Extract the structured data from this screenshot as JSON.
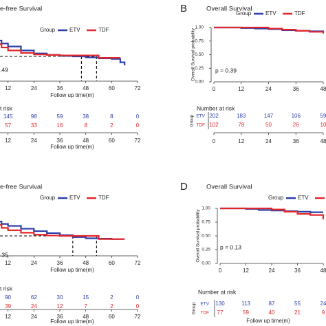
{
  "chart_data": [
    {
      "type": "survival",
      "title": "e-free Survival",
      "legend_title": "Group",
      "series": [
        {
          "name": "ETV",
          "color": "#2b3ea8",
          "x": [
            0,
            3,
            6,
            9,
            12,
            18,
            24,
            30,
            36,
            42,
            48,
            54,
            60,
            64,
            66
          ],
          "values": [
            1,
            0.9,
            0.82,
            0.76,
            0.7,
            0.62,
            0.56,
            0.53,
            0.51,
            0.5,
            0.48,
            0.46,
            0.45,
            0.38,
            0.32
          ]
        },
        {
          "name": "TDF",
          "color": "#e3262b",
          "x": [
            0,
            3,
            6,
            9,
            12,
            18,
            24,
            30,
            36,
            42,
            48,
            54,
            60,
            64
          ],
          "values": [
            1,
            0.85,
            0.75,
            0.68,
            0.62,
            0.57,
            0.54,
            0.53,
            0.52,
            0.52,
            0.52,
            0.47,
            0.47,
            0.47
          ]
        }
      ],
      "xlim": [
        0,
        72
      ],
      "ylim": [
        0,
        1
      ],
      "xticks": [
        12,
        24,
        36,
        48,
        60,
        72
      ],
      "xlabel": "Follow up time(m)",
      "median_times": [
        46,
        53
      ],
      "median_level": 0.5,
      "p_label": ".49",
      "risk": {
        "title": "t risk",
        "x": [
          12,
          24,
          36,
          48,
          60,
          72
        ],
        "rows": [
          [
            145,
            98,
            59,
            38,
            8,
            0
          ],
          [
            57,
            33,
            16,
            8,
            2,
            0
          ]
        ]
      }
    },
    {
      "type": "survival",
      "panel_label": "B",
      "title": "Overall Survival",
      "legend_title": "Group",
      "series": [
        {
          "name": "ETV",
          "color": "#2b3ea8",
          "x": [
            0,
            6,
            12,
            18,
            24,
            30,
            36,
            42,
            48
          ],
          "values": [
            1,
            1,
            0.99,
            0.98,
            0.97,
            0.95,
            0.94,
            0.93,
            0.92
          ]
        },
        {
          "name": "TDF",
          "color": "#e3262b",
          "x": [
            0,
            12,
            24,
            30,
            36,
            42,
            48
          ],
          "values": [
            1,
            1,
            0.98,
            0.96,
            0.94,
            0.92,
            0.89
          ]
        }
      ],
      "xlim": [
        0,
        48
      ],
      "ylim": [
        0,
        1
      ],
      "xticks": [
        0,
        12,
        24,
        36,
        48
      ],
      "yticks": [
        {
          "value": 0,
          "label": "0.00"
        },
        {
          "value": 0.25,
          "label": "0.25"
        },
        {
          "value": 0.5,
          "label": "0.50"
        },
        {
          "value": 0.75,
          "label": "0.75"
        },
        {
          "value": 1,
          "label": "1.00"
        }
      ],
      "ylabel": "Overall Survival probability",
      "p_label": "p = 0.39",
      "risk": {
        "title": "Number at risk",
        "group_label": "Group",
        "x": [
          0,
          12,
          24,
          36,
          48
        ],
        "rows": [
          [
            202,
            183,
            147,
            106,
            59
          ],
          [
            102,
            78,
            50,
            26,
            10
          ]
        ]
      }
    },
    {
      "type": "survival",
      "title": "e-free Survival",
      "legend_title": "Group",
      "series": [
        {
          "name": "ETV",
          "color": "#2b3ea8",
          "x": [
            0,
            3,
            6,
            9,
            12,
            18,
            24,
            30,
            36,
            42,
            48,
            54,
            60,
            66
          ],
          "values": [
            1,
            0.94,
            0.86,
            0.8,
            0.75,
            0.68,
            0.62,
            0.57,
            0.52,
            0.47,
            0.44,
            0.43,
            0.42,
            0.42
          ]
        },
        {
          "name": "TDF",
          "color": "#e3262b",
          "x": [
            0,
            3,
            6,
            9,
            12,
            18,
            24,
            30,
            36,
            42,
            48,
            54,
            60,
            66
          ],
          "values": [
            1,
            0.88,
            0.78,
            0.7,
            0.64,
            0.58,
            0.53,
            0.51,
            0.5,
            0.5,
            0.5,
            0.42,
            0.42,
            0.42
          ]
        }
      ],
      "xlim": [
        0,
        72
      ],
      "ylim": [
        0,
        1
      ],
      "xticks": [
        12,
        24,
        36,
        48,
        60,
        72
      ],
      "xlabel": "Follow up time(m)",
      "median_times": [
        42,
        53
      ],
      "median_level": 0.5,
      "p_label": ".35",
      "risk": {
        "title": "t risk",
        "x": [
          12,
          24,
          36,
          48,
          60,
          72
        ],
        "rows": [
          [
            90,
            62,
            30,
            15,
            2,
            0
          ],
          [
            39,
            24,
            12,
            7,
            2,
            0
          ]
        ]
      }
    },
    {
      "type": "survival",
      "panel_label": "D",
      "title": "Overall Survival",
      "legend_title": "Group",
      "series": [
        {
          "name": "ETV",
          "color": "#2b3ea8",
          "x": [
            0,
            12,
            18,
            24,
            30,
            36,
            42,
            48
          ],
          "values": [
            1,
            0.99,
            0.97,
            0.96,
            0.95,
            0.94,
            0.93,
            0.93
          ]
        },
        {
          "name": "TDF",
          "color": "#e3262b",
          "x": [
            0,
            12,
            24,
            30,
            36,
            42,
            48
          ],
          "values": [
            1,
            1,
            0.98,
            0.94,
            0.9,
            0.88,
            0.8
          ]
        }
      ],
      "xlim": [
        0,
        48
      ],
      "ylim": [
        0,
        1
      ],
      "xticks": [
        0,
        12,
        24,
        36,
        48
      ],
      "yticks": [
        {
          "value": 0,
          "label": "0.00"
        },
        {
          "value": 0.25,
          "label": "0.25"
        },
        {
          "value": 0.5,
          "label": "0.50"
        },
        {
          "value": 0.75,
          "label": "0.75"
        },
        {
          "value": 1,
          "label": "1.00"
        }
      ],
      "ylabel": "Overall Survival probability",
      "xlabel": "Follow up time(m)",
      "p_label": "p = 0.13",
      "risk": {
        "title": "Number at risk",
        "group_label": "Group",
        "x": [
          0,
          12,
          24,
          36,
          48
        ],
        "rows": [
          [
            130,
            113,
            87,
            55,
            24
          ],
          [
            77,
            59,
            40,
            21,
            9
          ]
        ]
      }
    }
  ]
}
